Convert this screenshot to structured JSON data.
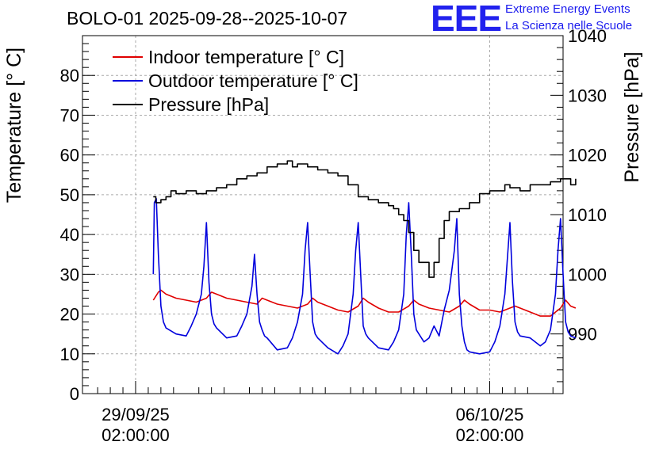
{
  "header": {
    "title": "BOLO-01 2025-09-28--2025-10-07",
    "logo_text": "EEE",
    "logo_line1": "Extreme Energy Events",
    "logo_line2": "La Scienza nelle Scuole"
  },
  "colors": {
    "indoor": "#e00000",
    "outdoor": "#0000dd",
    "pressure": "#000000",
    "logo": "#2222ee"
  },
  "chart_data": {
    "type": "line",
    "title": "BOLO-01 2025-09-28--2025-10-07",
    "xlabel": "",
    "ylabel": "Temperature [° C]",
    "y2label": "Pressure [hPa]",
    "xlim": [
      -0.05,
      9.45
    ],
    "ylim": [
      0,
      90
    ],
    "y2lim": [
      980,
      1040
    ],
    "x_unit": "days since 28/09/25 02:00:00",
    "xticks": [
      {
        "value": 1,
        "line1": "29/09/25",
        "line2": "02:00:00"
      },
      {
        "value": 8,
        "line1": "06/10/25",
        "line2": "02:00:00"
      }
    ],
    "yticks": [
      0,
      10,
      20,
      30,
      40,
      50,
      60,
      70,
      80
    ],
    "y2ticks": [
      990,
      1000,
      1010,
      1020,
      1030,
      1040
    ],
    "grid": true,
    "legend_position": "top-left",
    "series": [
      {
        "name": "Indoor temperature [° C]",
        "axis": "left",
        "color": "#e00000",
        "x": [
          1.35,
          1.45,
          1.5,
          1.6,
          1.8,
          2.0,
          2.2,
          2.4,
          2.5,
          2.6,
          2.8,
          3.0,
          3.2,
          3.4,
          3.5,
          3.6,
          3.8,
          4.0,
          4.2,
          4.4,
          4.5,
          4.6,
          4.8,
          5.0,
          5.2,
          5.4,
          5.5,
          5.6,
          5.8,
          6.0,
          6.2,
          6.4,
          6.5,
          6.6,
          6.8,
          7.0,
          7.2,
          7.4,
          7.5,
          7.6,
          7.8,
          8.0,
          8.2,
          8.4,
          8.5,
          8.6,
          8.8,
          9.0,
          9.2,
          9.4,
          9.5,
          9.6,
          9.7
        ],
        "y": [
          23.5,
          25.5,
          26,
          25,
          24,
          23.5,
          23,
          24,
          25.5,
          25,
          24,
          23.5,
          23,
          22.5,
          24,
          23.5,
          22.5,
          22,
          21.5,
          22.5,
          24,
          23,
          22,
          21,
          20.5,
          22,
          24,
          23,
          21.5,
          20.5,
          20.5,
          22,
          23.5,
          22.5,
          21.5,
          21,
          20.5,
          22,
          23.5,
          22.5,
          21,
          21,
          20.5,
          21.5,
          22,
          21.5,
          20.5,
          19.5,
          19.5,
          21.5,
          23.5,
          22,
          21.5
        ]
      },
      {
        "name": "Outdoor temperature [° C]",
        "axis": "left",
        "color": "#0000dd",
        "x": [
          1.35,
          1.37,
          1.41,
          1.45,
          1.5,
          1.55,
          1.6,
          1.8,
          2.0,
          2.1,
          2.2,
          2.3,
          2.35,
          2.4,
          2.45,
          2.5,
          2.55,
          2.6,
          2.8,
          3.0,
          3.1,
          3.2,
          3.3,
          3.35,
          3.4,
          3.45,
          3.5,
          3.55,
          3.6,
          3.8,
          4.0,
          4.1,
          4.2,
          4.3,
          4.35,
          4.4,
          4.45,
          4.5,
          4.55,
          4.6,
          4.8,
          5.0,
          5.1,
          5.2,
          5.3,
          5.35,
          5.4,
          5.45,
          5.5,
          5.55,
          5.6,
          5.8,
          6.0,
          6.1,
          6.2,
          6.3,
          6.35,
          6.4,
          6.45,
          6.5,
          6.55,
          6.6,
          6.7,
          6.8,
          6.9,
          7.0,
          7.1,
          7.2,
          7.3,
          7.35,
          7.4,
          7.45,
          7.5,
          7.55,
          7.6,
          7.8,
          8.0,
          8.1,
          8.2,
          8.3,
          8.35,
          8.4,
          8.45,
          8.5,
          8.55,
          8.6,
          8.8,
          9.0,
          9.1,
          9.2,
          9.3,
          9.35,
          9.4,
          9.45,
          9.5,
          9.55,
          9.6,
          9.7
        ],
        "y": [
          30,
          48,
          49,
          35,
          22,
          18,
          16.5,
          15,
          14.5,
          17,
          20,
          25,
          32,
          43,
          28,
          20,
          17.5,
          16.5,
          14,
          14.5,
          17,
          20,
          27,
          35,
          25,
          18,
          16,
          14.5,
          14,
          11,
          11.5,
          14,
          18,
          25,
          36,
          43,
          30,
          18,
          15,
          14,
          11.5,
          10,
          12,
          15,
          25,
          36,
          43,
          30,
          17,
          15,
          14,
          11.5,
          11,
          13,
          16,
          25,
          40,
          48,
          35,
          20,
          16,
          15,
          13,
          14,
          17,
          14.5,
          21,
          26,
          36,
          44,
          25,
          17,
          13,
          11,
          10.5,
          10,
          10.5,
          13,
          17,
          25,
          34,
          43,
          28,
          18,
          15.5,
          14.5,
          14,
          12,
          13,
          16,
          25,
          36,
          44,
          30,
          18,
          15.5,
          14.5,
          14
        ]
      },
      {
        "name": "Pressure [hPa]",
        "axis": "right",
        "color": "#000000",
        "x": [
          1.35,
          1.4,
          1.5,
          1.6,
          1.7,
          1.8,
          2.0,
          2.2,
          2.4,
          2.6,
          2.8,
          3.0,
          3.2,
          3.4,
          3.6,
          3.8,
          4.0,
          4.1,
          4.2,
          4.4,
          4.6,
          4.8,
          5.0,
          5.2,
          5.4,
          5.6,
          5.8,
          6.0,
          6.1,
          6.2,
          6.3,
          6.4,
          6.5,
          6.6,
          6.8,
          6.9,
          7.0,
          7.1,
          7.2,
          7.3,
          7.4,
          7.6,
          7.8,
          8.0,
          8.2,
          8.3,
          8.4,
          8.6,
          8.8,
          9.0,
          9.2,
          9.4,
          9.6,
          9.7
        ],
        "y": [
          1013,
          1012,
          1012.5,
          1013,
          1014,
          1013.5,
          1014,
          1013.5,
          1014,
          1014.5,
          1015,
          1016,
          1016.5,
          1017,
          1018,
          1018.5,
          1019,
          1018,
          1018.5,
          1018,
          1017.5,
          1017,
          1016.5,
          1015,
          1013,
          1012.5,
          1012,
          1011.5,
          1011,
          1010,
          1009,
          1007,
          1004,
          1002,
          999.5,
          1002,
          1006,
          1009,
          1010.5,
          1010.5,
          1011,
          1012,
          1013.5,
          1014,
          1014,
          1015,
          1014.5,
          1014,
          1015,
          1015,
          1015.5,
          1016,
          1015,
          1016
        ]
      }
    ]
  }
}
